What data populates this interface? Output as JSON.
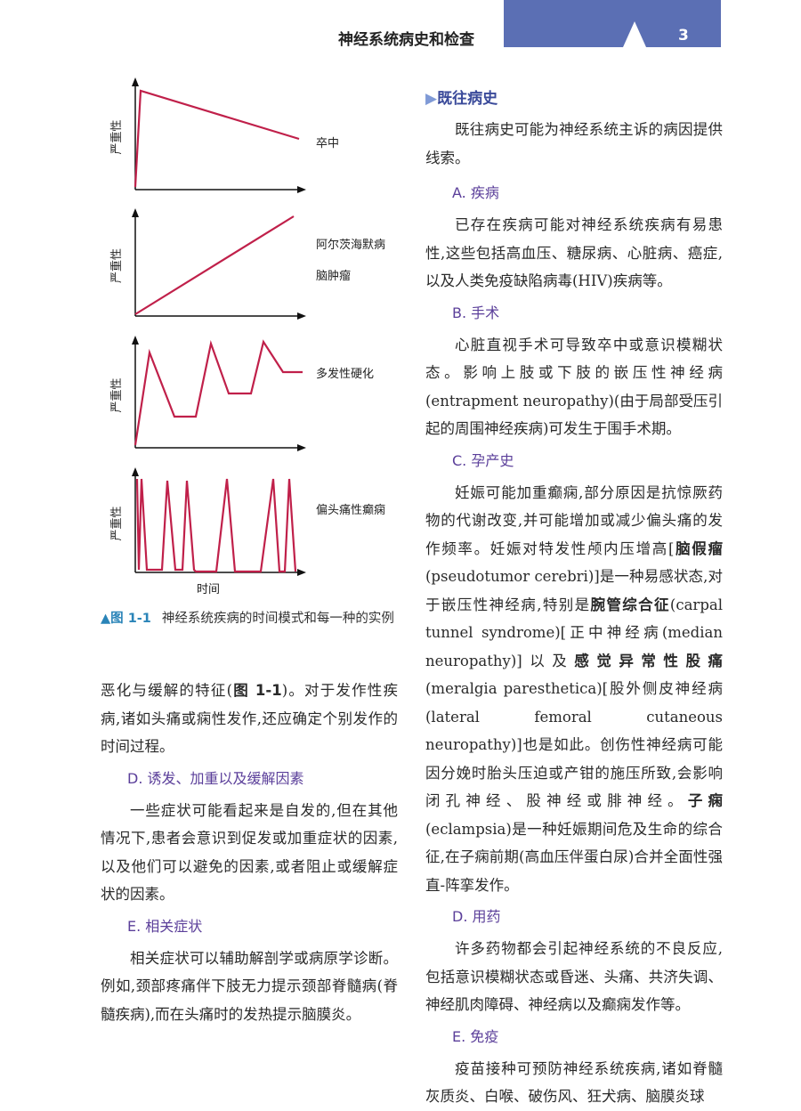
{
  "header": {
    "title": "神经系统病史和检查",
    "page_number": "3",
    "band_color": "#5b6fb4"
  },
  "figure": {
    "line_color": "#c0204a",
    "y_label": "严重性",
    "x_label": "时间",
    "panels": [
      {
        "labels": [
          "卒中"
        ],
        "pattern": "sudden onset then gradual improvement"
      },
      {
        "labels": [
          "阿尔茨海默病",
          "脑肿瘤"
        ],
        "pattern": "steady progression"
      },
      {
        "labels": [
          "多发性硬化"
        ],
        "pattern": "relapsing-remitting"
      },
      {
        "labels": [
          "偏头痛性癫痫"
        ],
        "pattern": "episodic"
      }
    ],
    "caption_number": "▲图 1-1",
    "caption_text": "神经系统疾病的时间模式和每一种的实例"
  },
  "left": [
    {
      "type": "p",
      "noind": true,
      "segs": [
        [
          "恶化与缓解的特征(",
          0
        ],
        [
          "图 1-1",
          1
        ],
        [
          ")。对于发作性疾病,诸如头痛或痫性发作,还应确定个别发作的时间过程。",
          0
        ]
      ]
    },
    {
      "type": "sub",
      "text": "D. 诱发、加重以及缓解因素"
    },
    {
      "type": "p",
      "segs": [
        [
          "一些症状可能看起来是自发的,但在其他情况下,患者会意识到促发或加重症状的因素,以及他们可以避免的因素,或者阻止或缓解症状的因素。",
          0
        ]
      ]
    },
    {
      "type": "sub",
      "text": "E. 相关症状"
    },
    {
      "type": "p",
      "segs": [
        [
          "相关症状可以辅助解剖学或病原学诊断。例如,颈部疼痛伴下肢无力提示颈部脊髓病(脊髓疾病),而在头痛时的发热提示脑膜炎。",
          0
        ]
      ]
    }
  ],
  "right": [
    {
      "type": "sec",
      "text": "既往病史",
      "arrow": "▶"
    },
    {
      "type": "p",
      "segs": [
        [
          "既往病史可能为神经系统主诉的病因提供线索。",
          0
        ]
      ]
    },
    {
      "type": "sub",
      "text": "A. 疾病"
    },
    {
      "type": "p",
      "segs": [
        [
          "已存在疾病可能对神经系统疾病有易患性,这些包括高血压、糖尿病、心脏病、癌症,以及人类免疫缺陷病毒(HIV)疾病等。",
          0
        ]
      ]
    },
    {
      "type": "sub",
      "text": "B. 手术"
    },
    {
      "type": "p",
      "segs": [
        [
          "心脏直视手术可导致卒中或意识模糊状态。影响上肢或下肢的嵌压性神经病(entrapment neuropathy)(由于局部受压引起的周围神经疾病)可发生于围手术期。",
          0
        ]
      ]
    },
    {
      "type": "sub",
      "text": "C. 孕产史"
    },
    {
      "type": "p",
      "segs": [
        [
          "妊娠可能加重癫痫,部分原因是抗惊厥药物的代谢改变,并可能增加或减少偏头痛的发作频率。妊娠对特发性颅内压增高[",
          0
        ],
        [
          "脑假瘤",
          1
        ],
        [
          "(pseudotumor cerebri)]是一种易感状态,对于嵌压性神经病,特别是",
          0
        ],
        [
          "腕管综合征",
          1
        ],
        [
          "(carpal tunnel syndrome)[正中神经病(median neuropathy)]以及",
          0
        ],
        [
          "感觉异常性股痛",
          1
        ],
        [
          "(meralgia paresthetica)[股外侧皮神经病(lateral femoral cutaneous neuropathy)]也是如此。创伤性神经病可能因分娩时胎头压迫或产钳的施压所致,会影响闭孔神经、股神经或腓神经。",
          0
        ],
        [
          "子痫",
          1
        ],
        [
          "(eclampsia)是一种妊娠期间危及生命的综合征,在子痫前期(高血压伴蛋白尿)合并全面性强直-阵挛发作。",
          0
        ]
      ]
    },
    {
      "type": "sub",
      "text": "D. 用药"
    },
    {
      "type": "p",
      "segs": [
        [
          "许多药物都会引起神经系统的不良反应,包括意识模糊状态或昏迷、头痛、共济失调、神经肌肉障碍、神经病以及癫痫发作等。",
          0
        ]
      ]
    },
    {
      "type": "sub",
      "text": "E. 免疫"
    },
    {
      "type": "p",
      "segs": [
        [
          "疫苗接种可预防神经系统疾病,诸如脊髓灰质炎、白喉、破伤风、狂犬病、脑膜炎球",
          0
        ]
      ]
    }
  ]
}
